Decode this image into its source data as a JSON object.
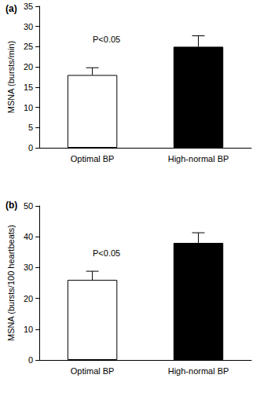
{
  "chart_data": [
    {
      "type": "bar",
      "title": "(a)",
      "categories": [
        "Optimal BP",
        "High-normal BP"
      ],
      "values": [
        18,
        25
      ],
      "errors": [
        1.8,
        2.7
      ],
      "colors": [
        "#ffffff",
        "#000000"
      ],
      "ylabel": "MSNA (bursts/min)",
      "ylim": [
        0,
        35
      ],
      "yticks": [
        0,
        5,
        10,
        15,
        20,
        25,
        30,
        35
      ],
      "annotation": "P<0.05",
      "grid": false
    },
    {
      "type": "bar",
      "title": "(b)",
      "categories": [
        "Optimal BP",
        "High-normal BP"
      ],
      "values": [
        26,
        38
      ],
      "errors": [
        2.8,
        3.3
      ],
      "colors": [
        "#ffffff",
        "#000000"
      ],
      "ylabel": "MSNA (bursts/100 heartbeats)",
      "ylim": [
        0,
        50
      ],
      "yticks": [
        0,
        10,
        20,
        30,
        40,
        50
      ],
      "annotation": "P<0.05",
      "grid": false
    }
  ]
}
